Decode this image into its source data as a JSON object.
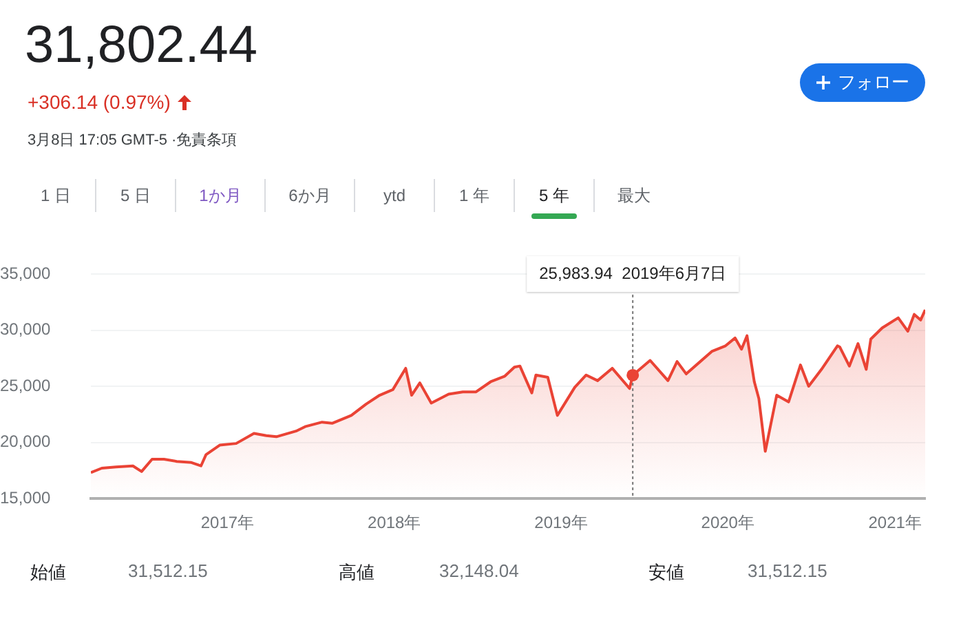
{
  "chart_data": {
    "type": "area",
    "title": "31,802.44",
    "subtitle": "+306.14 (0.97%)",
    "x": [
      "2016-03-08",
      "2016-04-01",
      "2016-05-02",
      "2016-06-08",
      "2016-06-27",
      "2016-07-20",
      "2016-08-15",
      "2016-09-12",
      "2016-10-14",
      "2016-11-04",
      "2016-11-15",
      "2016-12-15",
      "2017-01-20",
      "2017-02-28",
      "2017-03-27",
      "2017-04-18",
      "2017-05-31",
      "2017-06-20",
      "2017-07-27",
      "2017-08-18",
      "2017-09-29",
      "2017-10-31",
      "2017-11-30",
      "2017-12-29",
      "2018-01-26",
      "2018-02-08",
      "2018-02-26",
      "2018-03-23",
      "2018-04-30",
      "2018-05-31",
      "2018-06-29",
      "2018-07-31",
      "2018-08-31",
      "2018-09-21",
      "2018-10-03",
      "2018-10-29",
      "2018-11-07",
      "2018-12-03",
      "2018-12-24",
      "2019-01-31",
      "2019-02-25",
      "2019-03-22",
      "2019-04-23",
      "2019-05-31",
      "2019-06-07",
      "2019-07-15",
      "2019-08-23",
      "2019-09-12",
      "2019-10-02",
      "2019-11-27",
      "2019-12-27",
      "2020-01-17",
      "2020-01-31",
      "2020-02-12",
      "2020-02-28",
      "2020-03-09",
      "2020-03-23",
      "2020-04-17",
      "2020-05-13",
      "2020-06-08",
      "2020-06-26",
      "2020-07-24",
      "2020-08-28",
      "2020-09-02",
      "2020-09-23",
      "2020-10-12",
      "2020-10-30",
      "2020-11-09",
      "2020-12-04",
      "2021-01-08",
      "2021-01-29",
      "2021-02-12",
      "2021-02-26",
      "2021-03-08"
    ],
    "series": [
      {
        "color": "#ea4335",
        "values": [
          17300,
          17700,
          17800,
          17900,
          17400,
          18500,
          18500,
          18300,
          18200,
          17900,
          18900,
          19750,
          19900,
          20800,
          20600,
          20500,
          21000,
          21400,
          21800,
          21700,
          22400,
          23400,
          24200,
          24700,
          26600,
          24200,
          25300,
          23500,
          24300,
          24500,
          24500,
          25400,
          25900,
          26700,
          26800,
          24400,
          26000,
          25800,
          22400,
          24900,
          26000,
          25500,
          26600,
          24800,
          25983.94,
          27300,
          25500,
          27200,
          26100,
          28100,
          28600,
          29300,
          28300,
          29500,
          25400,
          23900,
          19200,
          24200,
          23600,
          26900,
          25000,
          26500,
          28600,
          28500,
          26800,
          28800,
          26500,
          29200,
          30200,
          31100,
          29900,
          31400,
          30900,
          31802.44
        ]
      }
    ],
    "xlim": [
      "2016-03-08",
      "2021-03-08"
    ],
    "xticks": [
      {
        "value": "2017-01-01",
        "label": "2017年"
      },
      {
        "value": "2018-01-01",
        "label": "2018年"
      },
      {
        "value": "2019-01-01",
        "label": "2019年"
      },
      {
        "value": "2020-01-01",
        "label": "2020年"
      },
      {
        "value": "2021-01-01",
        "label": "2021年"
      }
    ],
    "ylim": [
      15000,
      35000
    ],
    "yticks": [
      {
        "value": 15000,
        "label": "15,000"
      },
      {
        "value": 20000,
        "label": "20,000"
      },
      {
        "value": 25000,
        "label": "25,000"
      },
      {
        "value": 30000,
        "label": "30,000"
      },
      {
        "value": 35000,
        "label": "35,000"
      }
    ],
    "grid": "y",
    "legend": false,
    "marker": "none",
    "line_style": "solid",
    "ref_lines": [
      {
        "axis": "x",
        "value": "2019-06-07",
        "color": "#757575",
        "line_style": "dotted",
        "label": "25,983.94  2019年6月7日"
      }
    ],
    "annotations": [
      "3月8日 17:05 GMT-5 ·免責条項",
      "1 日",
      "5 日",
      "1か月",
      "6か月",
      "ytd",
      "1 年",
      "5 年",
      "最大",
      "フォロー",
      "始値",
      "31,512.15",
      "高値",
      "32,148.04",
      "安値",
      "31,512.15"
    ]
  }
}
